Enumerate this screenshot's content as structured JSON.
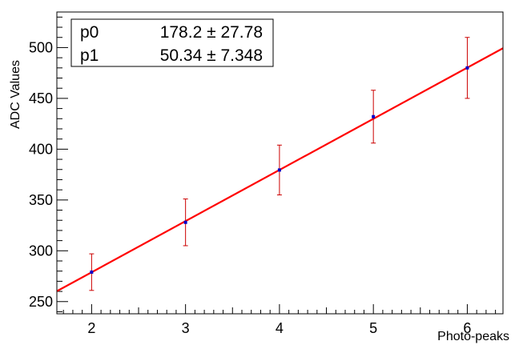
{
  "chart_data": {
    "type": "scatter",
    "xlabel": "Photo-peaks",
    "ylabel": "ADC Values",
    "xlim": [
      1.63,
      6.38
    ],
    "ylim": [
      238,
      535
    ],
    "xticks": [
      2,
      3,
      4,
      5,
      6
    ],
    "yticks": [
      250,
      300,
      350,
      400,
      450,
      500
    ],
    "points": [
      {
        "x": 2,
        "y": 279,
        "err": 18
      },
      {
        "x": 3,
        "y": 328,
        "err": 23
      },
      {
        "x": 4,
        "y": 379.5,
        "err": 24.5
      },
      {
        "x": 5,
        "y": 432,
        "err": 26
      },
      {
        "x": 6,
        "y": 480,
        "err": 30
      }
    ],
    "fit": {
      "p0": 178.2,
      "p1": 50.34
    },
    "stats": [
      {
        "name": "p0",
        "value": "178.2 ± 27.78"
      },
      {
        "name": "p1",
        "value": "50.34 ± 7.348"
      }
    ],
    "colors": {
      "fit": "#ff0000",
      "error_bar": "#cc0000",
      "marker": "#0000cc",
      "axes": "#000000"
    }
  }
}
